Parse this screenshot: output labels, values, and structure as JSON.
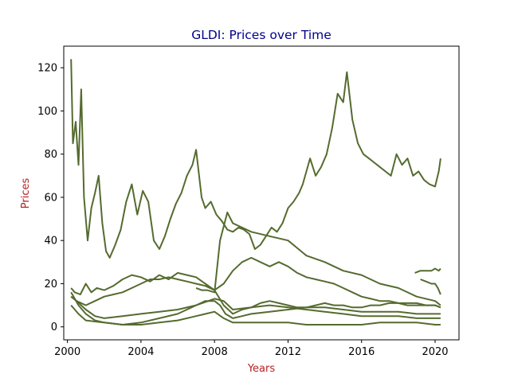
{
  "chart_data": {
    "type": "line",
    "title": "GLDI: Prices over Time",
    "xlabel": "Years",
    "ylabel": "Prices",
    "xlim": [
      1999.8,
      2021.3
    ],
    "ylim": [
      -6,
      130
    ],
    "x_ticks": [
      2000,
      2004,
      2008,
      2012,
      2016,
      2020
    ],
    "y_ticks": [
      0,
      20,
      40,
      60,
      80,
      100,
      120
    ],
    "grid": false,
    "legend": "none",
    "colors": {
      "line": "#556b2f",
      "title": "#00008b",
      "axis_labels": "#b22222"
    },
    "series": [
      {
        "x": [
          2000.2,
          2000.3,
          2000.45,
          2000.6,
          2000.75,
          2000.9,
          2001.1,
          2001.3,
          2001.5,
          2001.7,
          2001.9,
          2002.1,
          2002.3,
          2002.6,
          2002.9,
          2003.2,
          2003.5,
          2003.8,
          2004.1,
          2004.4,
          2004.7,
          2005.0,
          2005.3,
          2005.6,
          2005.9,
          2006.2,
          2006.5,
          2006.8,
          2007.0,
          2007.3,
          2007.5,
          2007.8,
          2008.1,
          2008.4,
          2008.7,
          2009.0,
          2009.3,
          2009.6,
          2009.9,
          2010.2,
          2010.5,
          2010.8,
          2011.1,
          2011.4,
          2011.7,
          2012.0,
          2012.3,
          2012.6,
          2012.8,
          2013.0,
          2013.2,
          2013.5,
          2013.8,
          2014.1,
          2014.4,
          2014.7,
          2015.0,
          2015.2,
          2015.5,
          2015.8,
          2016.1,
          2016.4,
          2016.7,
          2017.0,
          2017.3,
          2017.6,
          2017.9,
          2018.2,
          2018.5,
          2018.8,
          2019.1,
          2019.4,
          2019.7,
          2020.0,
          2020.2,
          2020.3
        ],
        "y": [
          124,
          85,
          95,
          75,
          110,
          60,
          40,
          55,
          62,
          70,
          48,
          35,
          32,
          38,
          45,
          58,
          66,
          52,
          63,
          58,
          40,
          36,
          42,
          50,
          57,
          62,
          70,
          75,
          82,
          60,
          55,
          58,
          52,
          49,
          45,
          44,
          46,
          45,
          43,
          36,
          38,
          42,
          46,
          44,
          48,
          55,
          58,
          62,
          66,
          72,
          78,
          70,
          74,
          80,
          92,
          108,
          104,
          118,
          96,
          85,
          80,
          78,
          76,
          74,
          72,
          70,
          80,
          75,
          78,
          70,
          72,
          68,
          66,
          65,
          72,
          78
        ]
      },
      {
        "x": [
          2000.2,
          2000.4,
          2000.7,
          2001.0,
          2001.3,
          2001.6,
          2002.0,
          2002.5,
          2003.0,
          2003.5,
          2004.0,
          2004.5,
          2005.0,
          2005.5,
          2006.0,
          2006.5,
          2007.0,
          2007.5,
          2008.0,
          2008.5,
          2009.0,
          2009.5,
          2010.0,
          2010.5,
          2011.0,
          2011.5,
          2012.0,
          2012.5,
          2013.0,
          2013.5,
          2014.0,
          2014.5,
          2015.0,
          2015.5,
          2016.0,
          2016.5,
          2017.0,
          2017.5,
          2018.0,
          2018.5,
          2019.0,
          2019.5,
          2020.0,
          2020.3
        ],
        "y": [
          18,
          16,
          15,
          20,
          16,
          18,
          17,
          19,
          22,
          24,
          23,
          21,
          24,
          22,
          25,
          24,
          23,
          20,
          17,
          10,
          6,
          8,
          9,
          11,
          12,
          11,
          10,
          9,
          9,
          10,
          11,
          10,
          10,
          9,
          9,
          10,
          10,
          11,
          11,
          10,
          10,
          10,
          10,
          9
        ]
      },
      {
        "x": [
          2000.2,
          2000.5,
          2001.0,
          2001.5,
          2002.0,
          2002.5,
          2003.0,
          2003.5,
          2004.0,
          2004.5,
          2005.0,
          2005.5,
          2006.0,
          2006.5,
          2007.0,
          2007.5,
          2008.0,
          2008.5,
          2009.0,
          2009.5,
          2010.0,
          2010.5,
          2011.0,
          2011.5,
          2012.0,
          2012.5,
          2013.0,
          2013.5,
          2014.0,
          2014.5,
          2015.0,
          2015.5,
          2016.0,
          2016.5,
          2017.0,
          2017.5,
          2018.0,
          2018.5,
          2019.0,
          2019.5,
          2020.0,
          2020.3
        ],
        "y": [
          14,
          12,
          10,
          12,
          14,
          15,
          16,
          18,
          20,
          22,
          22,
          23,
          22,
          21,
          20,
          19,
          17,
          20,
          26,
          30,
          32,
          30,
          28,
          30,
          28,
          25,
          23,
          22,
          21,
          20,
          18,
          16,
          14,
          13,
          12,
          12,
          11,
          11,
          11,
          10,
          10,
          9
        ]
      },
      {
        "x": [
          2000.2,
          2000.6,
          2001.0,
          2001.5,
          2002.0,
          2003.0,
          2004.0,
          2005.0,
          2006.0,
          2007.0,
          2007.5,
          2008.0,
          2008.3,
          2008.6,
          2009.0,
          2009.5,
          2010.0,
          2011.0,
          2012.0,
          2013.0,
          2014.0,
          2015.0,
          2016.0,
          2017.0,
          2018.0,
          2019.0,
          2020.0,
          2020.3
        ],
        "y": [
          16,
          10,
          6,
          3,
          2,
          1,
          2,
          4,
          6,
          10,
          12,
          12,
          10,
          6,
          4,
          5,
          6,
          7,
          8,
          9,
          9,
          8,
          7,
          7,
          7,
          6,
          6,
          6
        ]
      },
      {
        "x": [
          2000.2,
          2000.5,
          2001.0,
          2001.5,
          2002.0,
          2003.0,
          2004.0,
          2005.0,
          2006.0,
          2007.0,
          2008.0,
          2008.5,
          2009.0,
          2010.0,
          2011.0,
          2012.0,
          2013.0,
          2014.0,
          2015.0,
          2016.0,
          2017.0,
          2018.0,
          2019.0,
          2020.0,
          2020.3
        ],
        "y": [
          14,
          12,
          8,
          5,
          4,
          5,
          6,
          7,
          8,
          10,
          13,
          12,
          8,
          9,
          10,
          9,
          8,
          7,
          6,
          5,
          5,
          5,
          4,
          4,
          4
        ]
      },
      {
        "x": [
          2000.2,
          2000.6,
          2001.0,
          2002.0,
          2003.0,
          2004.0,
          2005.0,
          2006.0,
          2007.0,
          2008.0,
          2008.5,
          2009.0,
          2010.0,
          2011.0,
          2012.0,
          2013.0,
          2014.0,
          2015.0,
          2016.0,
          2017.0,
          2018.0,
          2019.0,
          2020.0,
          2020.3
        ],
        "y": [
          10,
          6,
          3,
          2,
          1,
          1,
          2,
          3,
          5,
          7,
          4,
          2,
          2,
          2,
          2,
          1,
          1,
          1,
          1,
          2,
          2,
          2,
          1,
          1
        ]
      },
      {
        "x": [
          2007.0,
          2007.3,
          2007.6,
          2008.0,
          2008.3,
          2008.7,
          2009.0,
          2009.5,
          2010.0,
          2011.0,
          2012.0,
          2013.0,
          2014.0,
          2015.0,
          2016.0,
          2017.0,
          2018.0,
          2019.0,
          2020.0,
          2020.3
        ],
        "y": [
          18,
          17,
          17,
          16,
          40,
          53,
          48,
          46,
          44,
          42,
          40,
          33,
          30,
          26,
          24,
          20,
          18,
          14,
          12,
          10
        ]
      },
      {
        "x": [
          2018.9,
          2019.2,
          2019.5,
          2019.8,
          2020.0,
          2020.2,
          2020.3
        ],
        "y": [
          25,
          26,
          26,
          26,
          27,
          26,
          27
        ]
      },
      {
        "x": [
          2019.2,
          2019.5,
          2019.8,
          2020.0,
          2020.15,
          2020.3
        ],
        "y": [
          22,
          21,
          20,
          20,
          18,
          15
        ]
      }
    ]
  }
}
